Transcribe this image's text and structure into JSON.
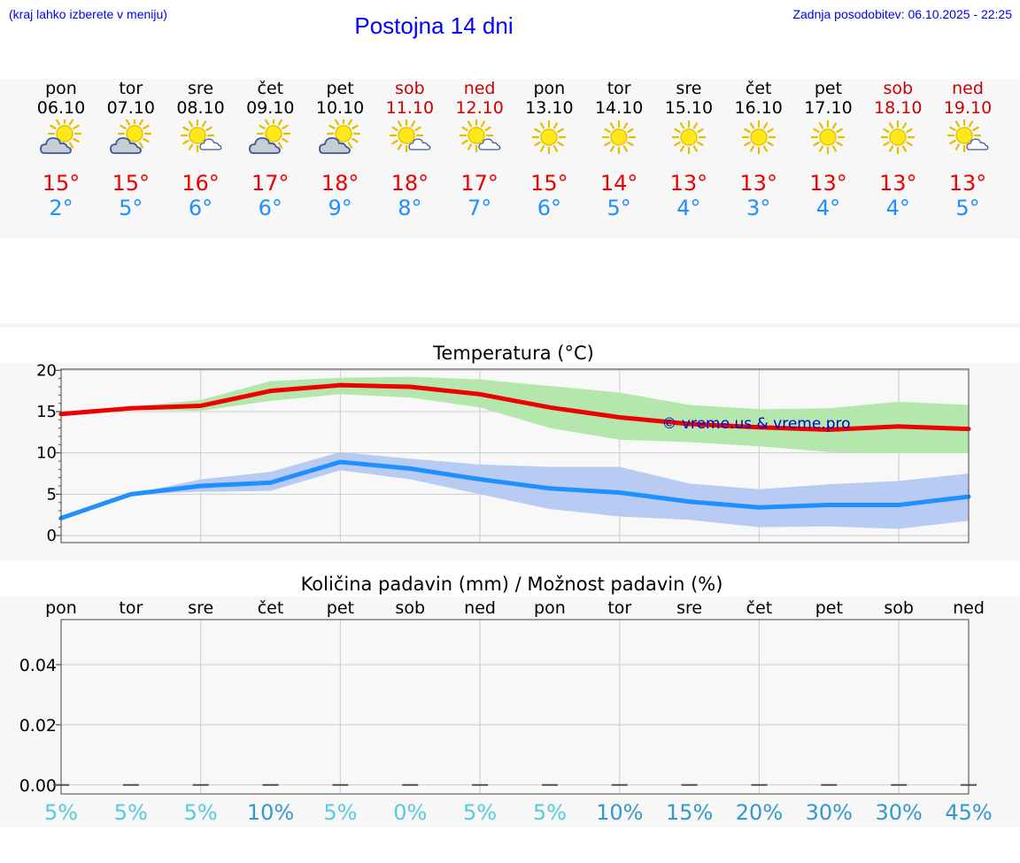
{
  "header": {
    "hint": "(kraj lahko izberete v meniju)",
    "title": "Postojna 14 dni",
    "updated": "Zadnja posodobitev: 06.10.2025 - 22:25"
  },
  "days": [
    {
      "name": "pon",
      "date": "06.10",
      "weekend": false,
      "icon": "partly-cloudy-icon",
      "max": "15°",
      "min": "2°"
    },
    {
      "name": "tor",
      "date": "07.10",
      "weekend": false,
      "icon": "partly-cloudy-icon",
      "max": "15°",
      "min": "5°"
    },
    {
      "name": "sre",
      "date": "08.10",
      "weekend": false,
      "icon": "sun-small-cloud-icon",
      "max": "16°",
      "min": "6°"
    },
    {
      "name": "čet",
      "date": "09.10",
      "weekend": false,
      "icon": "partly-cloudy-icon",
      "max": "17°",
      "min": "6°"
    },
    {
      "name": "pet",
      "date": "10.10",
      "weekend": false,
      "icon": "partly-cloudy-icon",
      "max": "18°",
      "min": "9°"
    },
    {
      "name": "sob",
      "date": "11.10",
      "weekend": true,
      "icon": "sun-small-cloud-icon",
      "max": "18°",
      "min": "8°"
    },
    {
      "name": "ned",
      "date": "12.10",
      "weekend": true,
      "icon": "sun-small-cloud-icon",
      "max": "17°",
      "min": "7°"
    },
    {
      "name": "pon",
      "date": "13.10",
      "weekend": false,
      "icon": "sun-icon",
      "max": "15°",
      "min": "6°"
    },
    {
      "name": "tor",
      "date": "14.10",
      "weekend": false,
      "icon": "sun-icon",
      "max": "14°",
      "min": "5°"
    },
    {
      "name": "sre",
      "date": "15.10",
      "weekend": false,
      "icon": "sun-icon",
      "max": "13°",
      "min": "4°"
    },
    {
      "name": "čet",
      "date": "16.10",
      "weekend": false,
      "icon": "sun-icon",
      "max": "13°",
      "min": "3°"
    },
    {
      "name": "pet",
      "date": "17.10",
      "weekend": false,
      "icon": "sun-icon",
      "max": "13°",
      "min": "4°"
    },
    {
      "name": "sob",
      "date": "18.10",
      "weekend": true,
      "icon": "sun-icon",
      "max": "13°",
      "min": "4°"
    },
    {
      "name": "ned",
      "date": "19.10",
      "weekend": true,
      "icon": "sun-small-cloud-icon",
      "max": "13°",
      "min": "5°"
    }
  ],
  "colors": {
    "max_line": "#ee0000",
    "max_band": "#b0e6a8",
    "min_line": "#1e90ff",
    "min_band": "#b4c8f2",
    "chance_low": "#55ccdd",
    "chance_mid": "#3399cc",
    "watermark": "#0000cc"
  },
  "chart_data": [
    {
      "type": "line",
      "title": "Temperatura (°C)",
      "ylim": [
        0,
        21
      ],
      "yticks": [
        "0",
        "5",
        "10",
        "15",
        "20"
      ],
      "x": [
        "06.10",
        "07.10",
        "08.10",
        "09.10",
        "10.10",
        "11.10",
        "12.10",
        "13.10",
        "14.10",
        "15.10",
        "16.10",
        "17.10",
        "18.10",
        "19.10"
      ],
      "watermark": "© vreme.us & vreme.pro",
      "series": [
        {
          "name": "max",
          "values": [
            14.7,
            15.4,
            15.7,
            17.5,
            18.2,
            18.0,
            17.1,
            15.5,
            14.3,
            13.5,
            13.1,
            12.8,
            13.2,
            12.9
          ],
          "band_low": [
            14.7,
            15.2,
            15.1,
            16.3,
            17.1,
            16.7,
            15.5,
            13.0,
            11.6,
            11.3,
            10.8,
            10.1,
            10.0,
            10.0
          ],
          "band_high": [
            14.7,
            15.6,
            16.4,
            18.7,
            19.1,
            19.2,
            18.9,
            18.1,
            17.3,
            15.8,
            15.3,
            15.4,
            16.2,
            15.8
          ]
        },
        {
          "name": "min",
          "values": [
            2.1,
            5.0,
            6.0,
            6.4,
            8.9,
            8.1,
            6.8,
            5.7,
            5.2,
            4.1,
            3.4,
            3.7,
            3.7,
            4.7
          ],
          "band_low": [
            2.1,
            5.0,
            5.3,
            5.4,
            7.9,
            6.8,
            5.0,
            3.2,
            2.3,
            1.9,
            1.0,
            1.1,
            0.8,
            1.8
          ],
          "band_high": [
            2.1,
            5.0,
            6.8,
            7.7,
            10.1,
            9.3,
            8.6,
            8.3,
            8.3,
            6.3,
            5.6,
            6.2,
            6.6,
            7.5
          ]
        }
      ]
    },
    {
      "type": "bar",
      "title": "Količina padavin (mm) / Možnost padavin (%)",
      "categories": [
        "pon",
        "tor",
        "sre",
        "čet",
        "pet",
        "sob",
        "ned",
        "pon",
        "tor",
        "sre",
        "čet",
        "pet",
        "sob",
        "ned"
      ],
      "values": [
        0,
        0,
        0,
        0,
        0,
        0,
        0,
        0,
        0,
        0,
        0,
        0,
        0,
        0
      ],
      "ylim": [
        -0.003,
        0.055
      ],
      "yticks": [
        "0.00",
        "0.02",
        "0.04"
      ],
      "chance": [
        "5%",
        "5%",
        "5%",
        "10%",
        "5%",
        "0%",
        "5%",
        "5%",
        "10%",
        "15%",
        "20%",
        "30%",
        "30%",
        "45%"
      ]
    }
  ]
}
